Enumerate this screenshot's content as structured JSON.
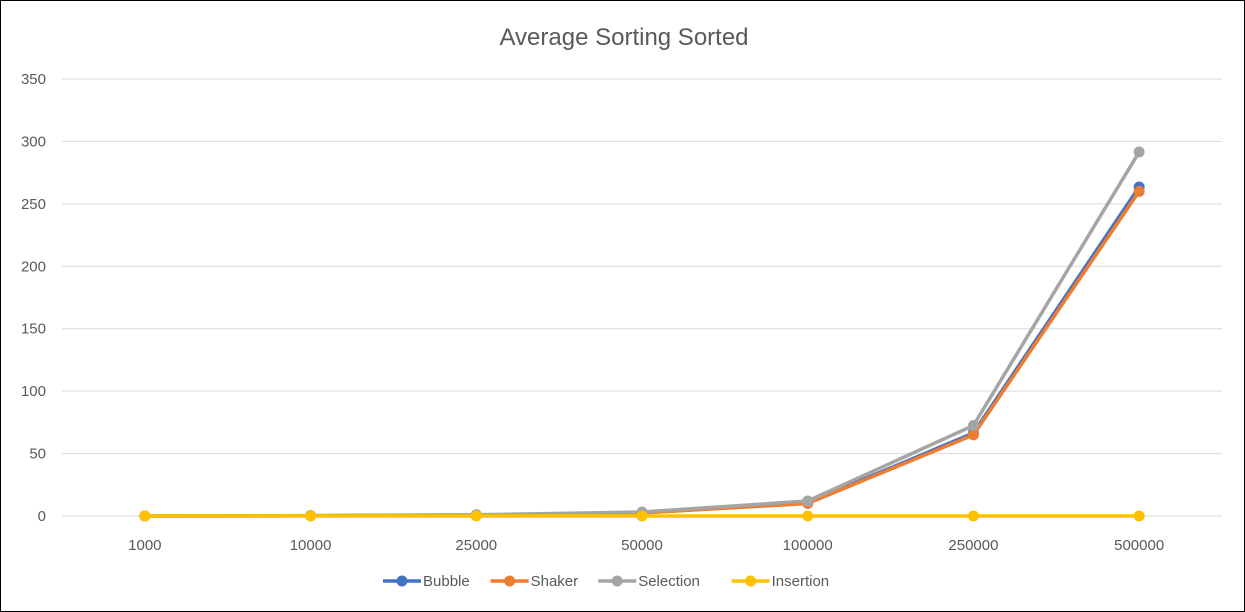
{
  "chart_data": {
    "type": "line",
    "title": "Average Sorting Sorted",
    "xlabel": "",
    "ylabel": "",
    "categories": [
      "1000",
      "10000",
      "25000",
      "50000",
      "100000",
      "250000",
      "500000"
    ],
    "ylim": [
      0,
      350
    ],
    "yticks": [
      0,
      50,
      100,
      150,
      200,
      250,
      300,
      350
    ],
    "grid": true,
    "legend_position": "bottom",
    "series": [
      {
        "name": "Bubble",
        "color": "#4472C4",
        "values": [
          0.0,
          0.2,
          0.8,
          2.5,
          10.5,
          66.5,
          263.5
        ]
      },
      {
        "name": "Shaker",
        "color": "#ED7D31",
        "values": [
          0.0,
          0.2,
          0.8,
          2.5,
          10.0,
          65.0,
          260.0
        ]
      },
      {
        "name": "Selection",
        "color": "#A5A5A5",
        "values": [
          0.0,
          0.3,
          1.0,
          3.2,
          12.0,
          72.5,
          291.5
        ]
      },
      {
        "name": "Insertion",
        "color": "#FFC000",
        "values": [
          0.0,
          0.0,
          0.0,
          0.0,
          0.0,
          0.0,
          0.0
        ]
      }
    ]
  }
}
